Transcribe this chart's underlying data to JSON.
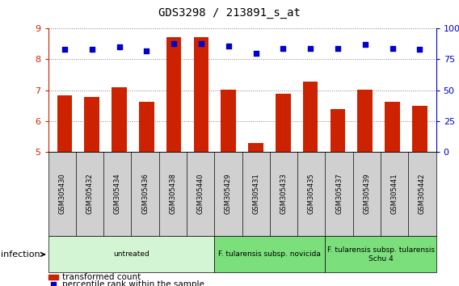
{
  "title": "GDS3298 / 213891_s_at",
  "samples": [
    "GSM305430",
    "GSM305432",
    "GSM305434",
    "GSM305436",
    "GSM305438",
    "GSM305440",
    "GSM305429",
    "GSM305431",
    "GSM305433",
    "GSM305435",
    "GSM305437",
    "GSM305439",
    "GSM305441",
    "GSM305442"
  ],
  "transformed_count": [
    6.82,
    6.78,
    7.08,
    6.62,
    8.72,
    8.72,
    7.02,
    5.28,
    6.88,
    7.28,
    6.38,
    7.02,
    6.62,
    6.48
  ],
  "percentile_rank": [
    83,
    83,
    85,
    82,
    88,
    88,
    86,
    80,
    84,
    84,
    84,
    87,
    84,
    83
  ],
  "groups": [
    {
      "label": "untreated",
      "start": 0,
      "end": 6,
      "color": "#d4f5d4"
    },
    {
      "label": "F. tularensis subsp. novicida",
      "start": 6,
      "end": 10,
      "color": "#7be07b"
    },
    {
      "label": "F. tularensis subsp. tularensis\nSchu 4",
      "start": 10,
      "end": 14,
      "color": "#7be07b"
    }
  ],
  "ylim_left": [
    5,
    9
  ],
  "ylim_right": [
    0,
    100
  ],
  "yticks_left": [
    5,
    6,
    7,
    8,
    9
  ],
  "yticks_right": [
    0,
    25,
    50,
    75,
    100
  ],
  "bar_color": "#cc2200",
  "dot_color": "#0000cc",
  "bg_color": "#ffffff",
  "gray_bg": "#d0d0d0",
  "axis_color_left": "#cc2200",
  "axis_color_right": "#0000cc",
  "infection_label": "infection",
  "legend_bar_label": "transformed count",
  "legend_dot_label": "percentile rank within the sample"
}
